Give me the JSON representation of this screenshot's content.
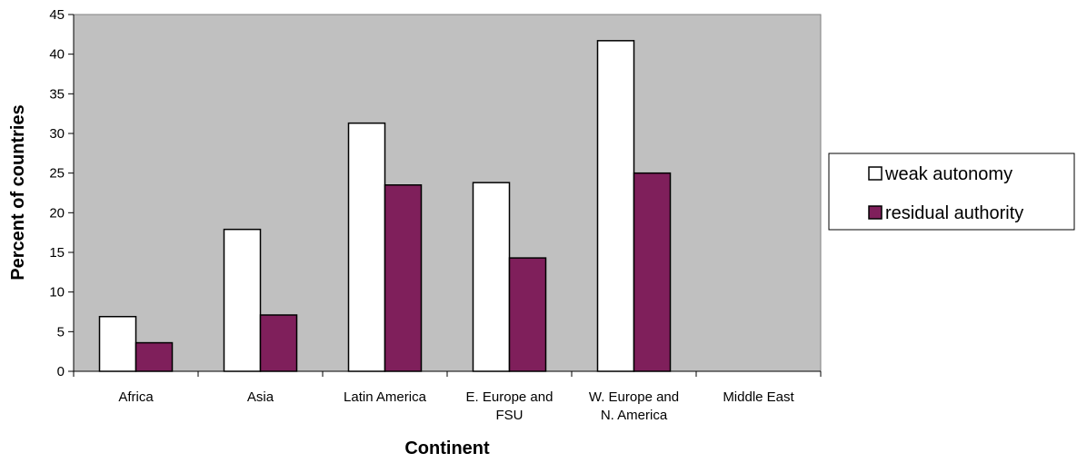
{
  "chart_data": {
    "type": "bar",
    "categories": [
      "Africa",
      "Asia",
      "Latin America",
      "E. Europe and FSU",
      "W. Europe and N. America",
      "Middle East"
    ],
    "category_lines": [
      [
        "Africa"
      ],
      [
        "Asia"
      ],
      [
        "Latin America"
      ],
      [
        "E. Europe and",
        "FSU"
      ],
      [
        "W. Europe and",
        "N. America"
      ],
      [
        "Middle East"
      ]
    ],
    "series": [
      {
        "name": "weak autonomy",
        "values": [
          6.9,
          17.9,
          31.3,
          23.8,
          41.7,
          0
        ],
        "color": "#ffffff"
      },
      {
        "name": "residual authority",
        "values": [
          3.6,
          7.1,
          23.5,
          14.3,
          25.0,
          0
        ],
        "color": "#7f1f5b"
      }
    ],
    "xlabel": "Continent",
    "ylabel": "Percent of countries",
    "ylim": [
      0,
      45
    ],
    "yticks": [
      0,
      5,
      10,
      15,
      20,
      25,
      30,
      35,
      40,
      45
    ],
    "plot_background": "#c0c0c0",
    "grid": false,
    "legend_position": "right"
  }
}
